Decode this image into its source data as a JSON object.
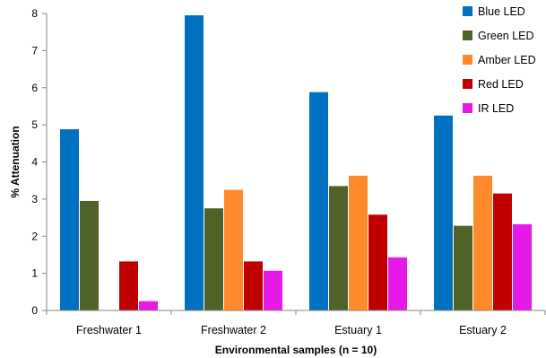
{
  "chart_data": {
    "type": "bar",
    "title": "",
    "xlabel": "Environmental samples  (n = 10)",
    "ylabel": "% Attenuation",
    "ylim": [
      0,
      8
    ],
    "yticks": [
      0,
      1,
      2,
      3,
      4,
      5,
      6,
      7,
      8
    ],
    "grid": false,
    "legend_position": "top-right",
    "categories": [
      "Freshwater 1",
      "Freshwater 2",
      "Estuary 1",
      "Estuary 2"
    ],
    "series": [
      {
        "name": "Blue LED",
        "color": "#0070C0",
        "values": [
          4.88,
          7.95,
          5.88,
          5.25
        ]
      },
      {
        "name": "Green LED",
        "color": "#4F6228",
        "values": [
          2.95,
          2.75,
          3.35,
          2.28
        ]
      },
      {
        "name": "Amber LED",
        "color": "#FF8A2B",
        "values": [
          0,
          3.25,
          3.63,
          3.63
        ]
      },
      {
        "name": "Red LED",
        "color": "#C00000",
        "values": [
          1.32,
          1.32,
          2.58,
          3.15
        ]
      },
      {
        "name": "IR LED",
        "color": "#E619E6",
        "values": [
          0.25,
          1.07,
          1.43,
          2.32
        ]
      }
    ]
  }
}
